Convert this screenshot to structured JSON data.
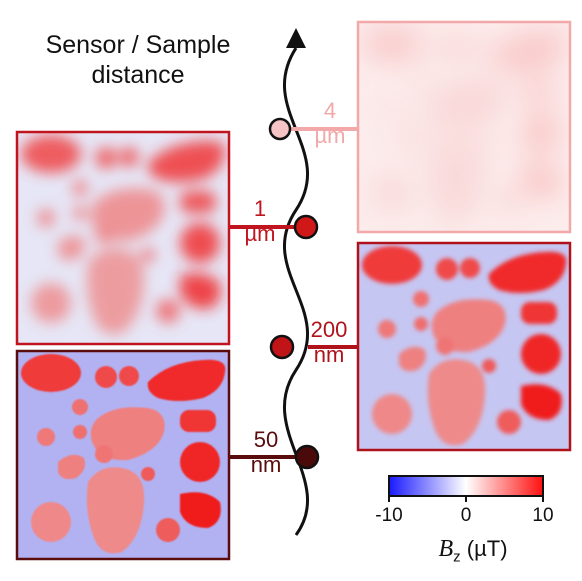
{
  "title": {
    "line1": "Sensor / Sample",
    "line2": "distance"
  },
  "distances": [
    {
      "value": "4",
      "unit": "µm",
      "color": "#f2a8a8"
    },
    {
      "value": "1",
      "unit": "µm",
      "color": "#c0151f"
    },
    {
      "value": "200",
      "unit": "nm",
      "color": "#b0121c"
    },
    {
      "value": "50",
      "unit": "nm",
      "color": "#5a0c0c"
    }
  ],
  "colorbar": {
    "min_label": "-10",
    "mid_label": "0",
    "max_label": "10",
    "symbol": "B",
    "subscript": "z",
    "unit": "(µT)",
    "colors": {
      "low": "#1a1aff",
      "mid": "#ffffff",
      "high": "#ff1010"
    }
  }
}
